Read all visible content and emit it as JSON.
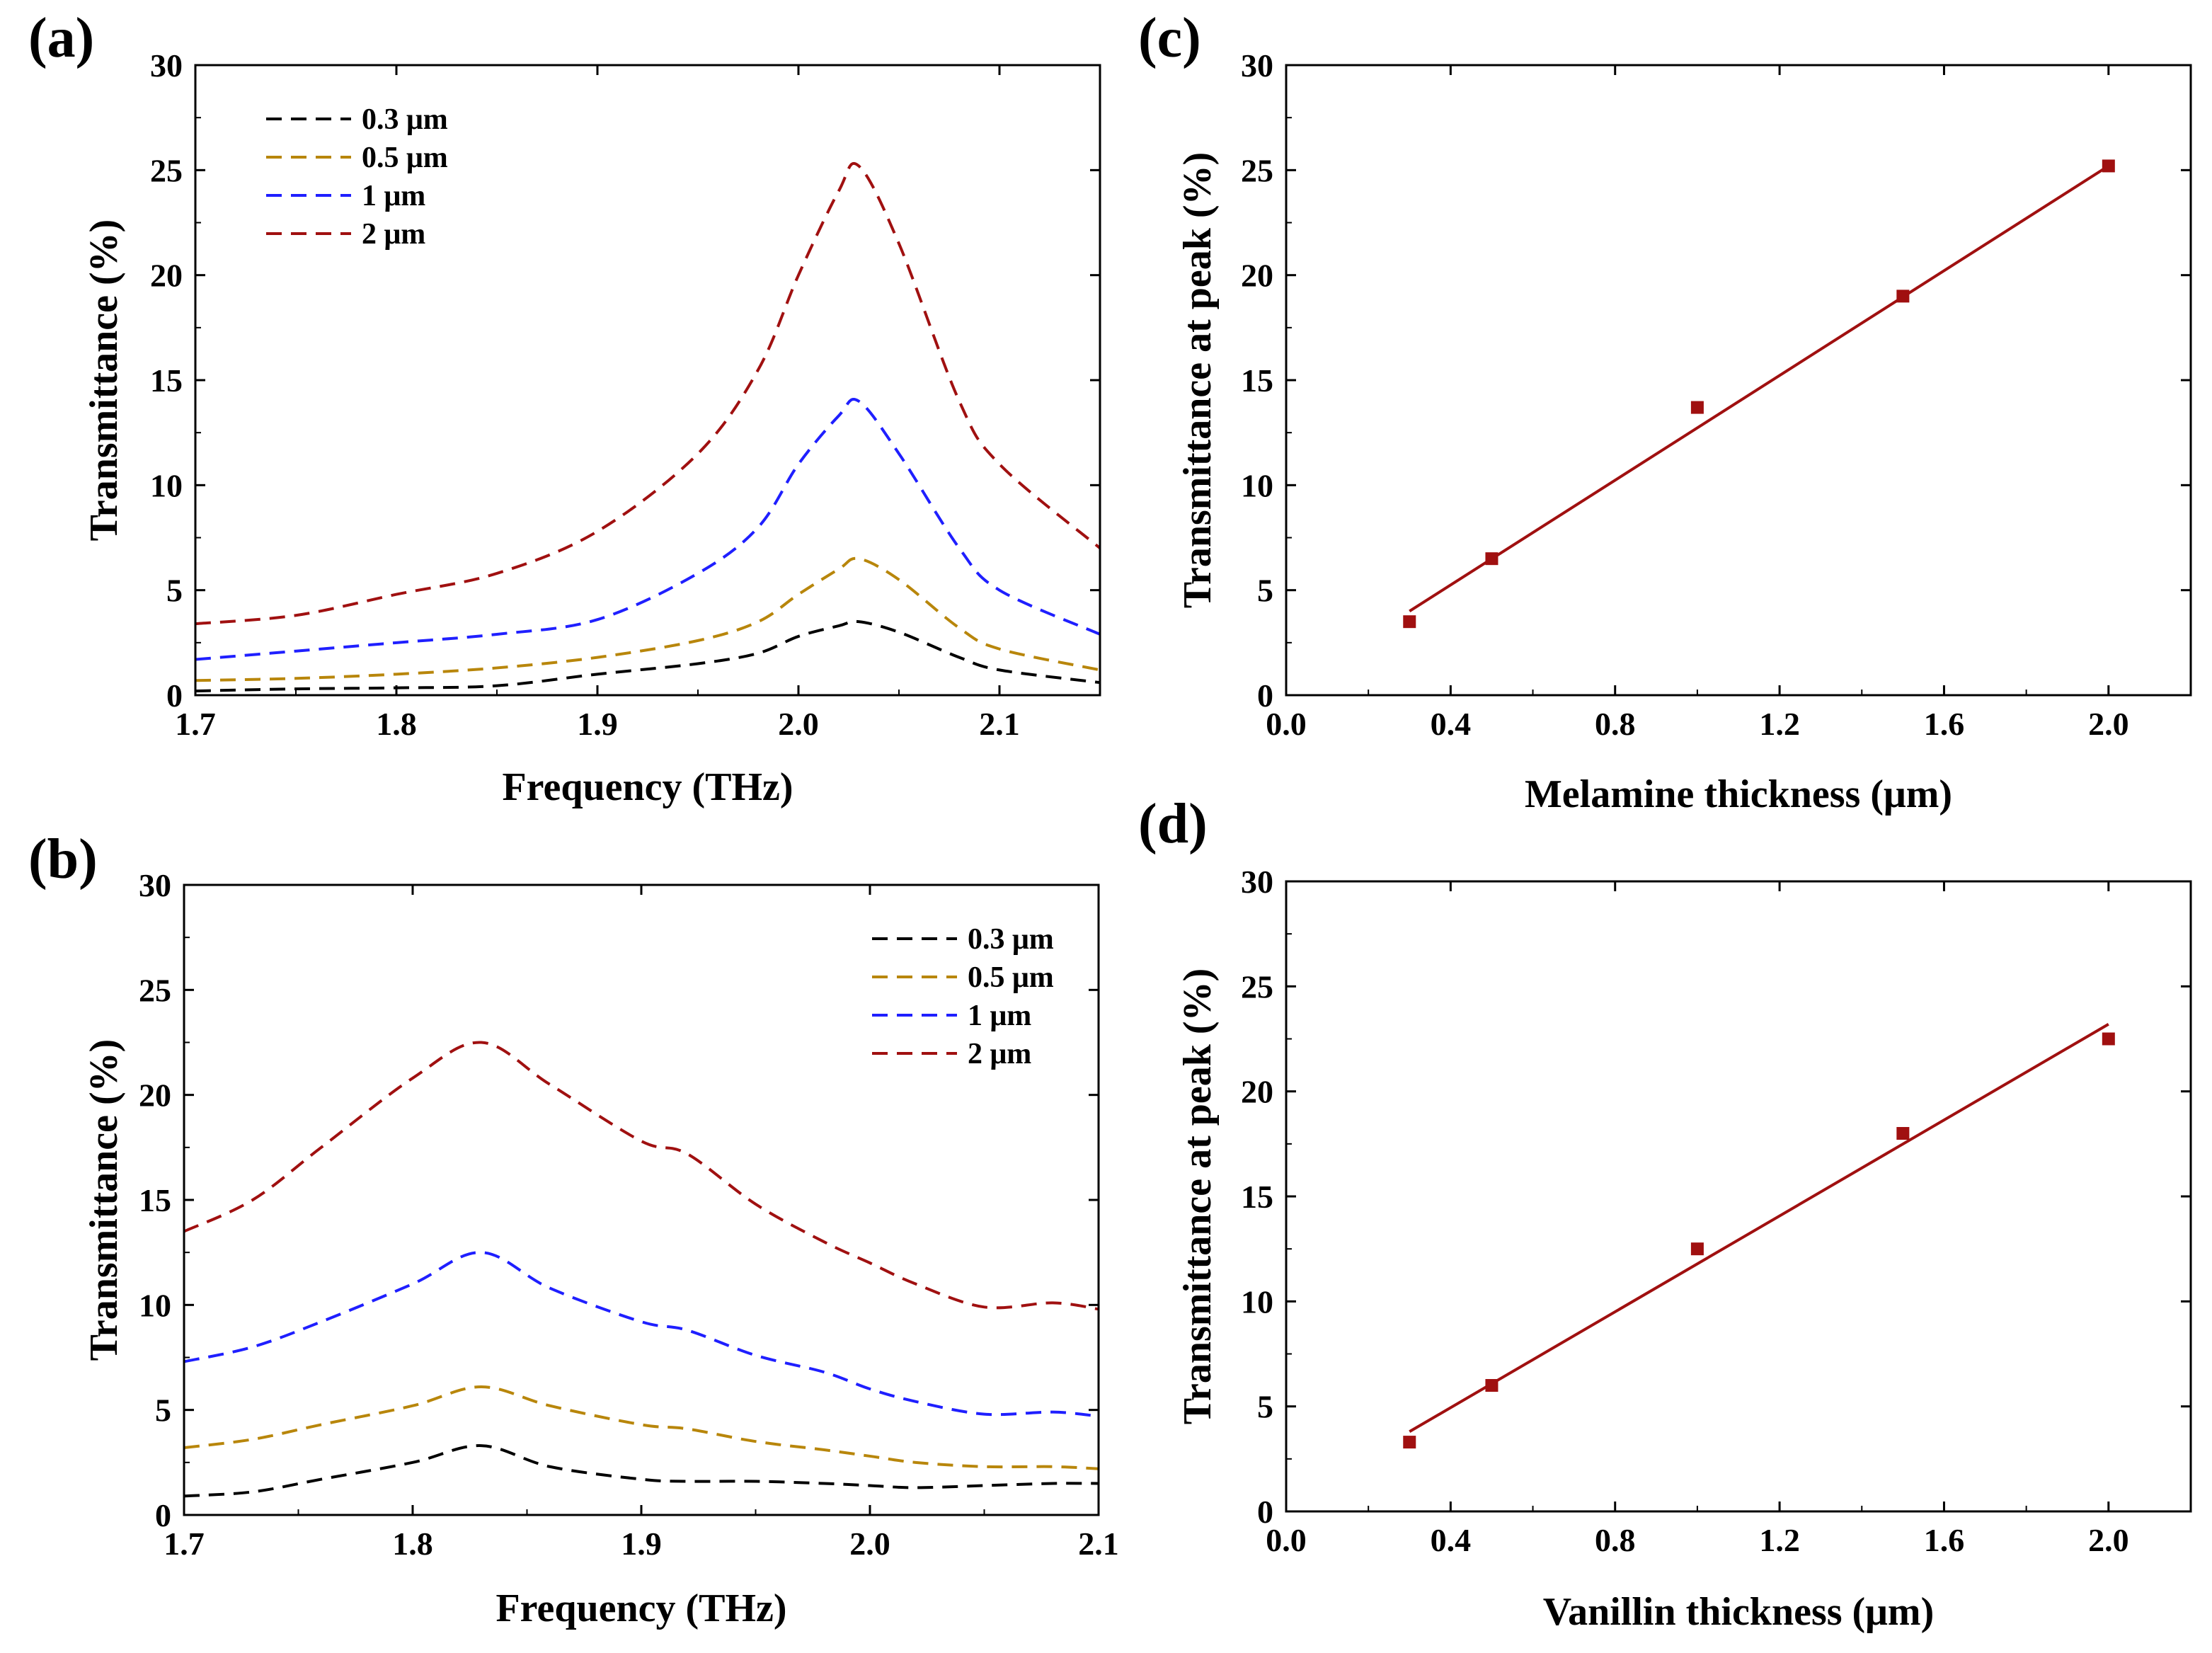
{
  "figure": {
    "panels": [
      "(a)",
      "(b)",
      "(c)",
      "(d)"
    ]
  },
  "chart_data": [
    {
      "panel": "(a)",
      "type": "line",
      "title": "",
      "xlabel": "Frequency (THz)",
      "ylabel": "Transmittance (%)",
      "xlim": [
        1.7,
        2.15
      ],
      "ylim": [
        0,
        30
      ],
      "xticks": [
        "1.7",
        "1.8",
        "1.9",
        "2.0",
        "2.1"
      ],
      "yticks": [
        "0",
        "5",
        "10",
        "15",
        "20",
        "25",
        "30"
      ],
      "legend_position": "top-left",
      "series": [
        {
          "name": "0.3 μm",
          "color": "#000000",
          "x": [
            1.7,
            1.75,
            1.8,
            1.85,
            1.9,
            1.95,
            1.98,
            2.0,
            2.02,
            2.03,
            2.05,
            2.08,
            2.1,
            2.15
          ],
          "y": [
            0.2,
            0.3,
            0.35,
            0.45,
            1.0,
            1.5,
            2.0,
            2.8,
            3.3,
            3.5,
            3.0,
            1.8,
            1.2,
            0.6
          ]
        },
        {
          "name": "0.5 μm",
          "color": "#B8860B",
          "x": [
            1.7,
            1.75,
            1.8,
            1.85,
            1.9,
            1.95,
            1.98,
            2.0,
            2.02,
            2.03,
            2.05,
            2.08,
            2.1,
            2.15
          ],
          "y": [
            0.7,
            0.8,
            1.0,
            1.3,
            1.8,
            2.6,
            3.5,
            4.8,
            6.0,
            6.5,
            5.5,
            3.2,
            2.2,
            1.2
          ]
        },
        {
          "name": "1 μm",
          "color": "#1F1FFF",
          "x": [
            1.7,
            1.75,
            1.8,
            1.85,
            1.9,
            1.95,
            1.98,
            2.0,
            2.02,
            2.03,
            2.05,
            2.08,
            2.1,
            2.15
          ],
          "y": [
            1.7,
            2.1,
            2.5,
            2.9,
            3.6,
            5.8,
            8.0,
            11.0,
            13.3,
            14.0,
            11.5,
            7.0,
            5.0,
            2.9
          ]
        },
        {
          "name": "2 μm",
          "color": "#A01010",
          "x": [
            1.7,
            1.75,
            1.8,
            1.85,
            1.9,
            1.95,
            1.98,
            2.0,
            2.02,
            2.03,
            2.05,
            2.08,
            2.1,
            2.15
          ],
          "y": [
            3.4,
            3.8,
            4.8,
            5.8,
            7.8,
            11.5,
            15.5,
            20.0,
            24.0,
            25.2,
            21.5,
            14.0,
            11.0,
            7.0
          ]
        }
      ]
    },
    {
      "panel": "(b)",
      "type": "line",
      "title": "",
      "xlabel": "Frequency (THz)",
      "ylabel": "Transmittance (%)",
      "xlim": [
        1.7,
        2.1
      ],
      "ylim": [
        0,
        30
      ],
      "xticks": [
        "1.7",
        "1.8",
        "1.9",
        "2.0",
        "2.1"
      ],
      "yticks": [
        "0",
        "5",
        "10",
        "15",
        "20",
        "25",
        "30"
      ],
      "legend_position": "top-right",
      "series": [
        {
          "name": "0.3 μm",
          "color": "#000000",
          "x": [
            1.7,
            1.73,
            1.76,
            1.8,
            1.83,
            1.86,
            1.9,
            1.92,
            1.95,
            1.98,
            2.0,
            2.02,
            2.05,
            2.08,
            2.1
          ],
          "y": [
            0.9,
            1.1,
            1.7,
            2.5,
            3.3,
            2.3,
            1.7,
            1.6,
            1.6,
            1.5,
            1.4,
            1.3,
            1.4,
            1.5,
            1.5
          ]
        },
        {
          "name": "0.5 μm",
          "color": "#B8860B",
          "x": [
            1.7,
            1.73,
            1.76,
            1.8,
            1.83,
            1.86,
            1.9,
            1.92,
            1.95,
            1.98,
            2.0,
            2.02,
            2.05,
            2.08,
            2.1
          ],
          "y": [
            3.2,
            3.6,
            4.3,
            5.2,
            6.1,
            5.2,
            4.3,
            4.1,
            3.5,
            3.1,
            2.8,
            2.5,
            2.3,
            2.3,
            2.2
          ]
        },
        {
          "name": "1 μm",
          "color": "#1F1FFF",
          "x": [
            1.7,
            1.73,
            1.76,
            1.8,
            1.83,
            1.86,
            1.9,
            1.92,
            1.95,
            1.98,
            2.0,
            2.02,
            2.05,
            2.08,
            2.1
          ],
          "y": [
            7.3,
            8.0,
            9.2,
            11.0,
            12.5,
            10.8,
            9.2,
            8.8,
            7.6,
            6.8,
            6.0,
            5.4,
            4.8,
            4.9,
            4.7
          ]
        },
        {
          "name": "2 μm",
          "color": "#A01010",
          "x": [
            1.7,
            1.73,
            1.76,
            1.8,
            1.83,
            1.86,
            1.9,
            1.92,
            1.95,
            1.98,
            2.0,
            2.02,
            2.05,
            2.08,
            2.1
          ],
          "y": [
            13.5,
            15.0,
            17.5,
            20.8,
            22.5,
            20.5,
            17.8,
            17.2,
            14.8,
            13.0,
            12.0,
            11.0,
            9.9,
            10.1,
            9.8
          ]
        }
      ]
    },
    {
      "panel": "(c)",
      "type": "scatter",
      "title": "",
      "xlabel": "Melamine thickness (μm)",
      "ylabel": "Transmittance at peak (%)",
      "xlim": [
        0.0,
        2.2
      ],
      "ylim": [
        0,
        30
      ],
      "xticks": [
        "0.0",
        "0.4",
        "0.8",
        "1.2",
        "1.6",
        "2.0"
      ],
      "yticks": [
        "0",
        "5",
        "10",
        "15",
        "20",
        "25",
        "30"
      ],
      "color": "#A01010",
      "points": {
        "x": [
          0.3,
          0.5,
          1.0,
          1.5,
          2.0
        ],
        "y": [
          3.5,
          6.5,
          13.7,
          19.0,
          25.2
        ]
      },
      "fit_line": {
        "x": [
          0.3,
          2.0
        ],
        "y": [
          4.0,
          25.2
        ]
      }
    },
    {
      "panel": "(d)",
      "type": "scatter",
      "title": "",
      "xlabel": "Vanillin thickness (μm)",
      "ylabel": "Transmittance at peak (%)",
      "xlim": [
        0.0,
        2.2
      ],
      "ylim": [
        0,
        30
      ],
      "xticks": [
        "0.0",
        "0.4",
        "0.8",
        "1.2",
        "1.6",
        "2.0"
      ],
      "yticks": [
        "0",
        "5",
        "10",
        "15",
        "20",
        "25",
        "30"
      ],
      "color": "#A01010",
      "points": {
        "x": [
          0.3,
          0.5,
          1.0,
          1.5,
          2.0
        ],
        "y": [
          3.3,
          6.0,
          12.5,
          18.0,
          22.5
        ]
      },
      "fit_line": {
        "x": [
          0.3,
          2.0
        ],
        "y": [
          3.8,
          23.2
        ]
      }
    }
  ]
}
